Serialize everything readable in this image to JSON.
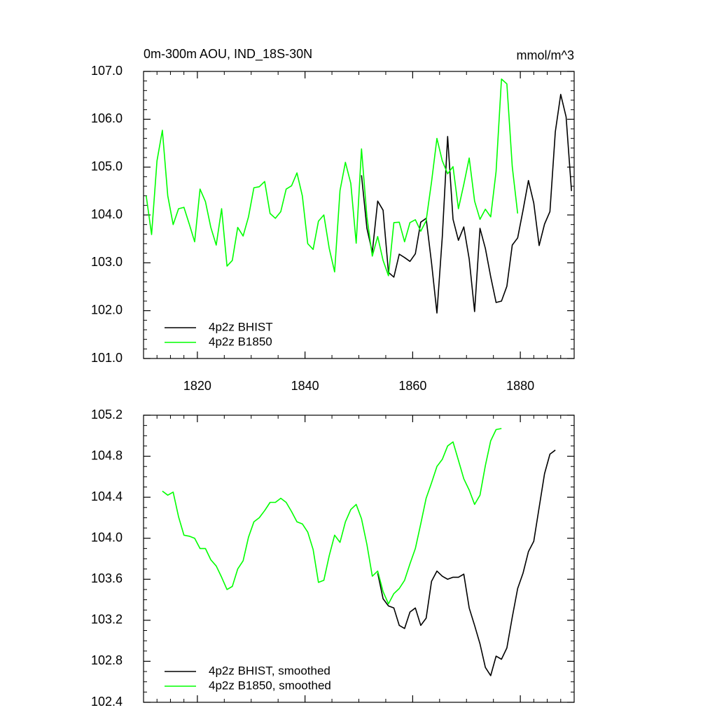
{
  "chart_data": [
    {
      "type": "line",
      "title": "0m-300m AOU, IND_18S-30N",
      "units_label": "mmol/m^3",
      "xlim": [
        1810,
        1890
      ],
      "xticks": [
        1820,
        1840,
        1860,
        1880
      ],
      "ylim": [
        101,
        107
      ],
      "yticks": [
        {
          "value": 101,
          "label": "101.0"
        },
        {
          "value": 102,
          "label": "102.0"
        },
        {
          "value": 103,
          "label": "103.0"
        },
        {
          "value": 104,
          "label": "104.0"
        },
        {
          "value": 105,
          "label": "105.0"
        },
        {
          "value": 106,
          "label": "106.0"
        },
        {
          "value": 107,
          "label": "107.0"
        }
      ],
      "legend": "lower left",
      "series": [
        {
          "name": "4p2z BHIST",
          "color": "#000000",
          "x": [
            1850.5,
            1851.5,
            1852.5,
            1853.5,
            1854.5,
            1855.5,
            1856.5,
            1857.5,
            1858.5,
            1859.5,
            1860.5,
            1861.5,
            1862.5,
            1863.5,
            1864.5,
            1865.5,
            1866.5,
            1867.5,
            1868.5,
            1869.5,
            1870.5,
            1871.5,
            1872.5,
            1873.5,
            1874.5,
            1875.5,
            1876.5,
            1877.5,
            1878.5,
            1879.5,
            1880.5,
            1881.5,
            1882.5,
            1883.5,
            1884.5,
            1885.5,
            1886.5,
            1887.5,
            1888.5,
            1889.5
          ],
          "values": [
            104.83,
            103.72,
            103.22,
            104.29,
            104.1,
            102.8,
            102.7,
            103.18,
            103.11,
            103.03,
            103.19,
            103.85,
            103.93,
            103.0,
            101.95,
            103.55,
            105.64,
            103.91,
            103.47,
            103.75,
            103.08,
            101.98,
            103.72,
            103.3,
            102.71,
            102.17,
            102.2,
            102.51,
            103.37,
            103.52,
            104.1,
            104.72,
            104.25,
            103.36,
            103.81,
            104.07,
            105.74,
            106.52,
            106.05,
            104.5
          ]
        },
        {
          "name": "4p2z B1850",
          "color": "#00ff00",
          "x": [
            1810.5,
            1811.5,
            1812.5,
            1813.5,
            1814.5,
            1815.5,
            1816.5,
            1817.5,
            1818.5,
            1819.5,
            1820.5,
            1821.5,
            1822.5,
            1823.5,
            1824.5,
            1825.5,
            1826.5,
            1827.5,
            1828.5,
            1829.5,
            1830.5,
            1831.5,
            1832.5,
            1833.5,
            1834.5,
            1835.5,
            1836.5,
            1837.5,
            1838.5,
            1839.5,
            1840.5,
            1841.5,
            1842.5,
            1843.5,
            1844.5,
            1845.5,
            1846.5,
            1847.5,
            1848.5,
            1849.5,
            1850.5,
            1851.5,
            1852.5,
            1853.5,
            1854.5,
            1855.5,
            1856.5,
            1857.5,
            1858.5,
            1859.5,
            1860.5,
            1861.5,
            1862.5,
            1863.5,
            1864.5,
            1865.5,
            1866.5,
            1867.5,
            1868.5,
            1869.5,
            1870.5,
            1871.5,
            1872.5,
            1873.5,
            1874.5,
            1875.5,
            1876.5,
            1877.5,
            1878.5,
            1879.5
          ],
          "values": [
            104.4,
            103.59,
            105.13,
            105.77,
            104.4,
            103.8,
            104.13,
            104.16,
            103.81,
            103.44,
            104.54,
            104.28,
            103.74,
            103.37,
            104.13,
            102.93,
            103.05,
            103.74,
            103.56,
            103.96,
            104.57,
            104.59,
            104.7,
            104.03,
            103.93,
            104.07,
            104.54,
            104.61,
            104.88,
            104.4,
            103.4,
            103.28,
            103.87,
            104.0,
            103.3,
            102.81,
            104.51,
            105.1,
            104.66,
            103.41,
            105.38,
            103.96,
            103.14,
            103.55,
            103.05,
            102.73,
            103.84,
            103.85,
            103.44,
            103.84,
            103.9,
            103.66,
            103.88,
            104.69,
            105.6,
            105.13,
            104.86,
            105.01,
            104.13,
            104.64,
            105.19,
            104.29,
            103.91,
            104.12,
            103.96,
            104.91,
            106.84,
            106.74,
            105.01,
            104.03
          ]
        }
      ]
    },
    {
      "type": "line",
      "xlim": [
        1810,
        1890
      ],
      "xticks": [
        1820,
        1840,
        1860,
        1880
      ],
      "ylim": [
        102.4,
        105.2
      ],
      "yticks": [
        102.4,
        102.8,
        103.2,
        103.6,
        {
          "value": 104,
          "label": "104.0"
        },
        104.4,
        104.8,
        105.2
      ],
      "legend": "lower left",
      "series": [
        {
          "name": "4p2z BHIST, smoothed",
          "color": "#000000",
          "x": [
            1853.5,
            1854.5,
            1855.5,
            1856.5,
            1857.5,
            1858.5,
            1859.5,
            1860.5,
            1861.5,
            1862.5,
            1863.5,
            1864.5,
            1865.5,
            1866.5,
            1867.5,
            1868.5,
            1869.5,
            1870.5,
            1871.5,
            1872.5,
            1873.5,
            1874.5,
            1875.5,
            1876.5,
            1877.5,
            1878.5,
            1879.5,
            1880.5,
            1881.5,
            1882.5,
            1883.5,
            1884.5,
            1885.5,
            1886.5
          ],
          "values": [
            103.66,
            103.41,
            103.34,
            103.32,
            103.15,
            103.12,
            103.28,
            103.32,
            103.15,
            103.22,
            103.58,
            103.68,
            103.63,
            103.6,
            103.62,
            103.62,
            103.65,
            103.32,
            103.15,
            102.97,
            102.74,
            102.66,
            102.85,
            102.82,
            102.93,
            103.23,
            103.51,
            103.66,
            103.87,
            103.97,
            104.3,
            104.63,
            104.82,
            104.86
          ]
        },
        {
          "name": "4p2z B1850, smoothed",
          "color": "#00ff00",
          "x": [
            1813.5,
            1814.5,
            1815.5,
            1816.5,
            1817.5,
            1818.5,
            1819.5,
            1820.5,
            1821.5,
            1822.5,
            1823.5,
            1824.5,
            1825.5,
            1826.5,
            1827.5,
            1828.5,
            1829.5,
            1830.5,
            1831.5,
            1832.5,
            1833.5,
            1834.5,
            1835.5,
            1836.5,
            1837.5,
            1838.5,
            1839.5,
            1840.5,
            1841.5,
            1842.5,
            1843.5,
            1844.5,
            1845.5,
            1846.5,
            1847.5,
            1848.5,
            1849.5,
            1850.5,
            1851.5,
            1852.5,
            1853.5,
            1854.5,
            1855.5,
            1856.5,
            1857.5,
            1858.5,
            1859.5,
            1860.5,
            1861.5,
            1862.5,
            1863.5,
            1864.5,
            1865.5,
            1866.5,
            1867.5,
            1868.5,
            1869.5,
            1870.5,
            1871.5,
            1872.5,
            1873.5,
            1874.5,
            1875.5,
            1876.5
          ],
          "values": [
            104.46,
            104.42,
            104.45,
            104.21,
            104.03,
            104.02,
            104.0,
            103.9,
            103.9,
            103.79,
            103.73,
            103.62,
            103.5,
            103.53,
            103.7,
            103.78,
            104.01,
            104.16,
            104.2,
            104.27,
            104.35,
            104.35,
            104.39,
            104.35,
            104.26,
            104.16,
            104.14,
            104.06,
            103.89,
            103.57,
            103.59,
            103.83,
            104.03,
            103.96,
            104.16,
            104.28,
            104.33,
            104.19,
            103.94,
            103.63,
            103.68,
            103.48,
            103.36,
            103.46,
            103.51,
            103.59,
            103.75,
            103.9,
            104.14,
            104.39,
            104.54,
            104.7,
            104.77,
            104.9,
            104.94,
            104.76,
            104.58,
            104.47,
            104.33,
            104.42,
            104.71,
            104.95,
            105.06,
            105.07
          ]
        }
      ]
    }
  ]
}
